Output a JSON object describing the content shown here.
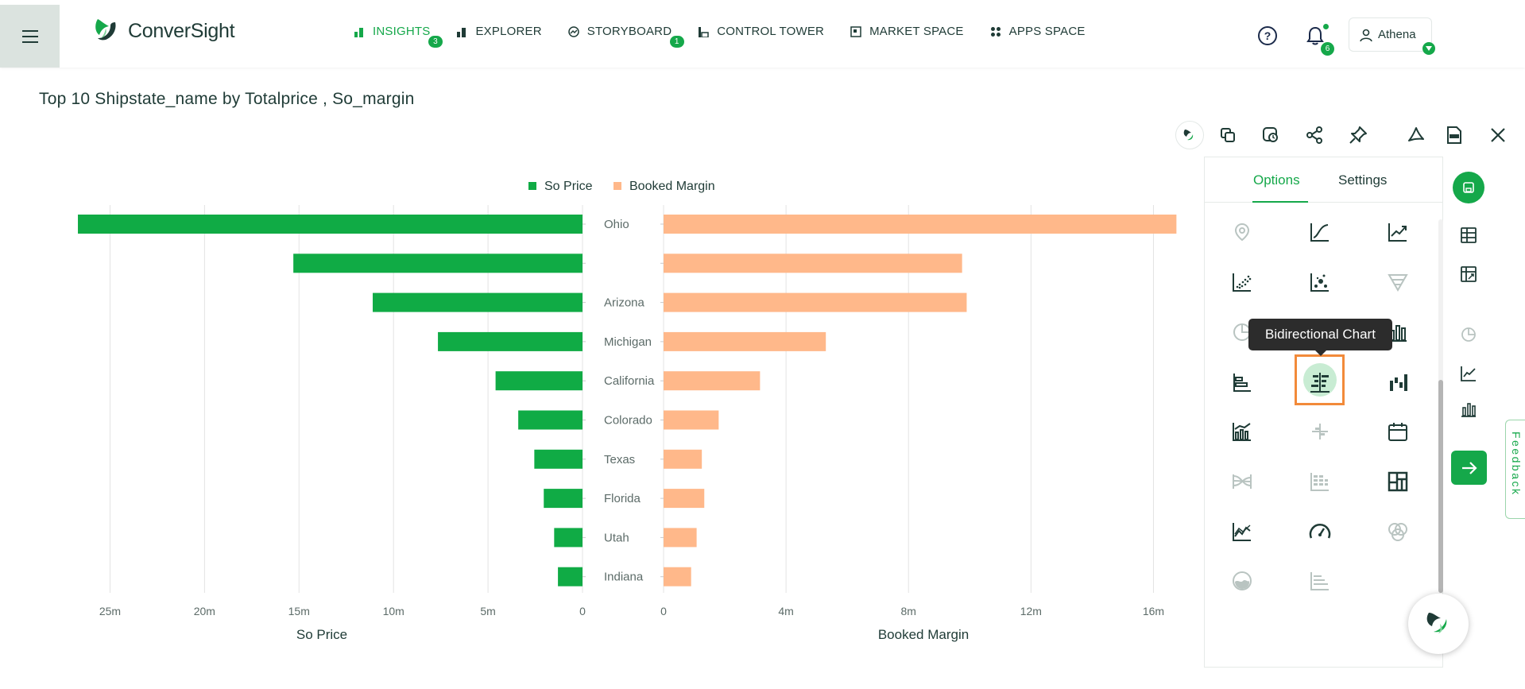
{
  "app": {
    "logo_text": "ConverSight"
  },
  "nav": [
    {
      "label": "INSIGHTS",
      "badge": "3",
      "active": true,
      "icon": "insights-icon"
    },
    {
      "label": "EXPLORER",
      "badge": "",
      "active": false,
      "icon": "explorer-icon"
    },
    {
      "label": "STORYBOARD",
      "badge": "1",
      "active": false,
      "icon": "storyboard-icon"
    },
    {
      "label": "CONTROL TOWER",
      "badge": "",
      "active": false,
      "icon": "control-tower-icon"
    },
    {
      "label": "MARKET SPACE",
      "badge": "",
      "active": false,
      "icon": "market-space-icon"
    },
    {
      "label": "APPS SPACE",
      "badge": "",
      "active": false,
      "icon": "apps-space-icon"
    }
  ],
  "header": {
    "notification_count": "6",
    "user_name": "Athena"
  },
  "page": {
    "title": "Top 10 Shipstate_name by Totalprice , So_margin"
  },
  "panel": {
    "tabs": [
      "Options",
      "Settings"
    ],
    "active_tab": "Options",
    "tooltip": "Bidirectional Chart",
    "selected_chart": "bidirectional-chart"
  },
  "feedback_label": "Feedback",
  "colors": {
    "accent": "#15a84a",
    "so_price": "#10ab45",
    "booked_margin": "#ffb88a",
    "selected_outline": "#f28a3a"
  },
  "chart_data": {
    "type": "bar",
    "orientation": "bidirectional-horizontal",
    "categories": [
      "Ohio",
      "",
      "Arizona",
      "Michigan",
      "California",
      "Colorado",
      "Texas",
      "Florida",
      "Utah",
      "Indiana"
    ],
    "series": [
      {
        "name": "So Price",
        "values": [
          26700000,
          15300000,
          11100000,
          7650000,
          4600000,
          3400000,
          2550000,
          2050000,
          1500000,
          1300000
        ],
        "xlim": [
          0,
          27500000
        ],
        "ticks": [
          "25m",
          "20m",
          "15m",
          "10m",
          "5m",
          "0"
        ],
        "tick_values": [
          25000000,
          20000000,
          15000000,
          10000000,
          5000000,
          0
        ]
      },
      {
        "name": "Booked Margin",
        "values": [
          16750000,
          9750000,
          9900000,
          5300000,
          3150000,
          1800000,
          1250000,
          1330000,
          1080000,
          900000
        ],
        "xlim": [
          0,
          17000000
        ],
        "ticks": [
          "0",
          "4m",
          "8m",
          "12m",
          "16m"
        ],
        "tick_values": [
          0,
          4000000,
          8000000,
          12000000,
          16000000
        ]
      }
    ],
    "legend": [
      "So Price",
      "Booked Margin"
    ],
    "legend_position": "top-center",
    "xlabel_left": "So Price",
    "xlabel_right": "Booked Margin",
    "grid": true
  }
}
